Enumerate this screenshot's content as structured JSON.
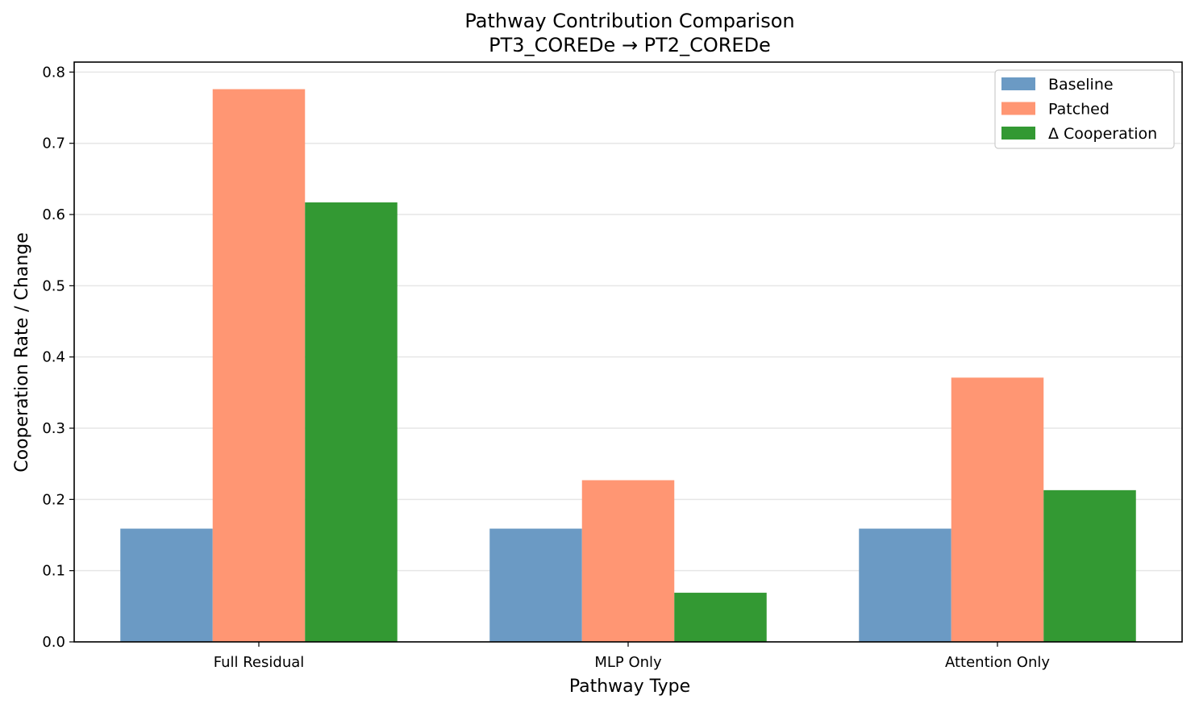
{
  "chart_data": {
    "type": "bar",
    "title": "Pathway Contribution Comparison",
    "subtitle": "PT3_COREDe → PT2_COREDe",
    "xlabel": "Pathway Type",
    "ylabel": "Cooperation Rate / Change",
    "categories": [
      "Full Residual",
      "MLP Only",
      "Attention Only"
    ],
    "series": [
      {
        "name": "Baseline",
        "color": "#6b9ac4",
        "values": [
          0.159,
          0.159,
          0.159
        ]
      },
      {
        "name": "Patched",
        "color": "#ff9673",
        "values": [
          0.776,
          0.227,
          0.371
        ]
      },
      {
        "name": "Δ Cooperation",
        "color": "#339933",
        "values": [
          0.617,
          0.069,
          0.213
        ]
      }
    ],
    "ylim": [
      0,
      0.814
    ],
    "yticks": [
      "0.0",
      "0.1",
      "0.2",
      "0.3",
      "0.4",
      "0.5",
      "0.6",
      "0.7",
      "0.8"
    ],
    "grid": "horizontal",
    "legend_position": "top-right"
  }
}
